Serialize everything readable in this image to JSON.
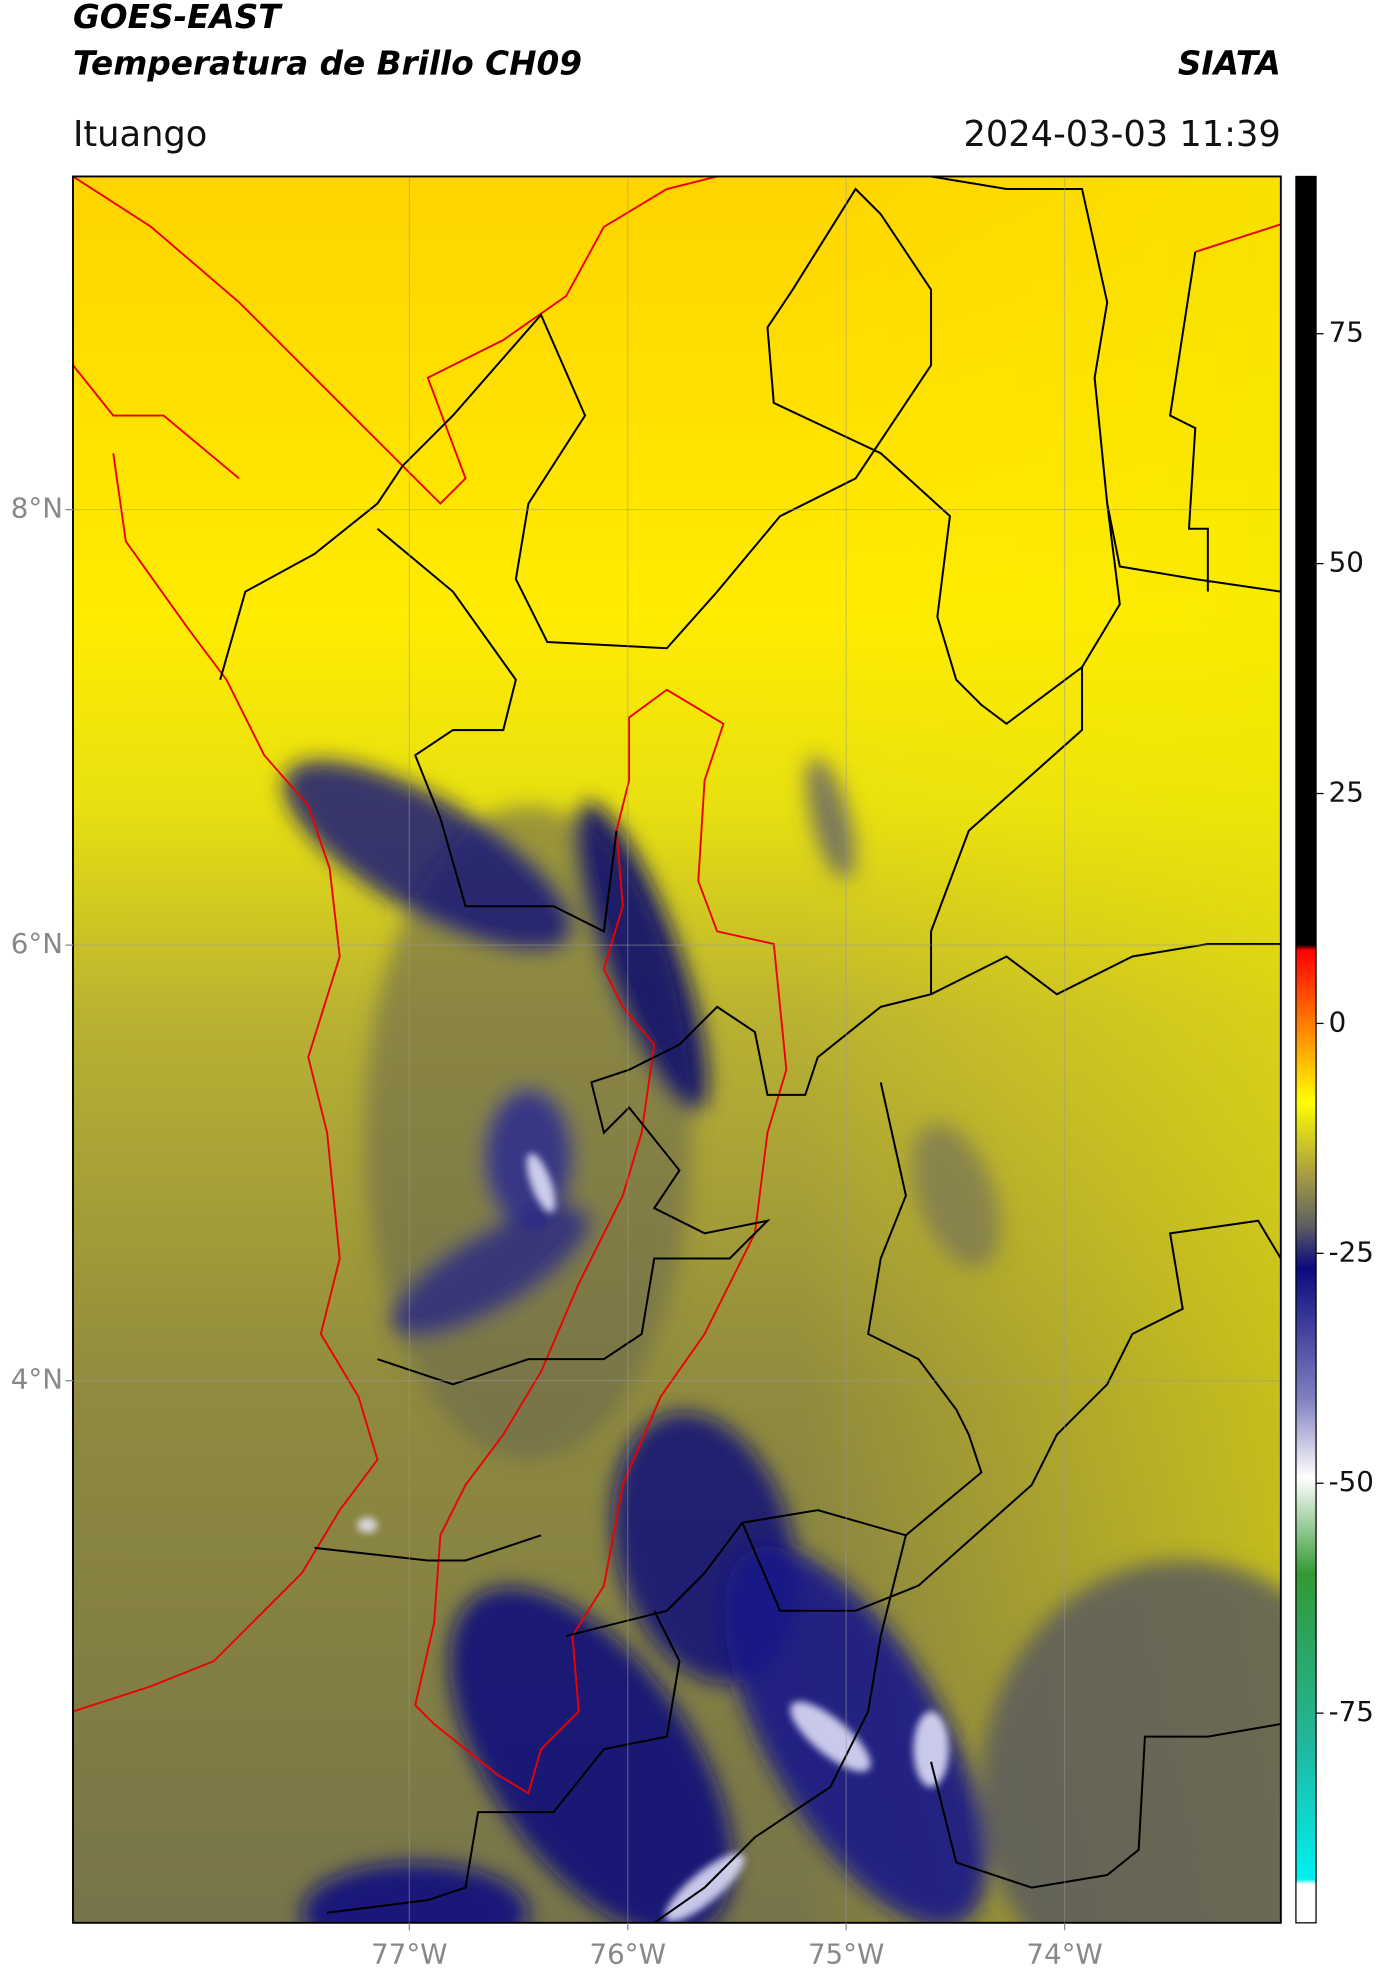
{
  "header": {
    "title": "GOES-EAST",
    "subtitle": "Temperatura de Brillo CH09",
    "brand": "SIATA",
    "location": "Ituango",
    "datetime": "2024-03-03 11:39"
  },
  "map": {
    "lonlim": [
      -78.54,
      -73.01
    ],
    "latlim": [
      1.51,
      9.53
    ],
    "lonticks": [
      {
        "value": -77,
        "label": "77°W"
      },
      {
        "value": -76,
        "label": "76°W"
      },
      {
        "value": -75,
        "label": "75°W"
      },
      {
        "value": -74,
        "label": "74°W"
      }
    ],
    "latticks": [
      {
        "value": 8,
        "label": "8°N"
      },
      {
        "value": 6,
        "label": "6°N"
      },
      {
        "value": 4,
        "label": "4°N"
      }
    ],
    "grid": true
  },
  "colorbar": {
    "lim": [
      -97.8,
      92.1
    ],
    "ticks": [
      75,
      50,
      25,
      0,
      -25,
      -50,
      -75
    ]
  }
}
